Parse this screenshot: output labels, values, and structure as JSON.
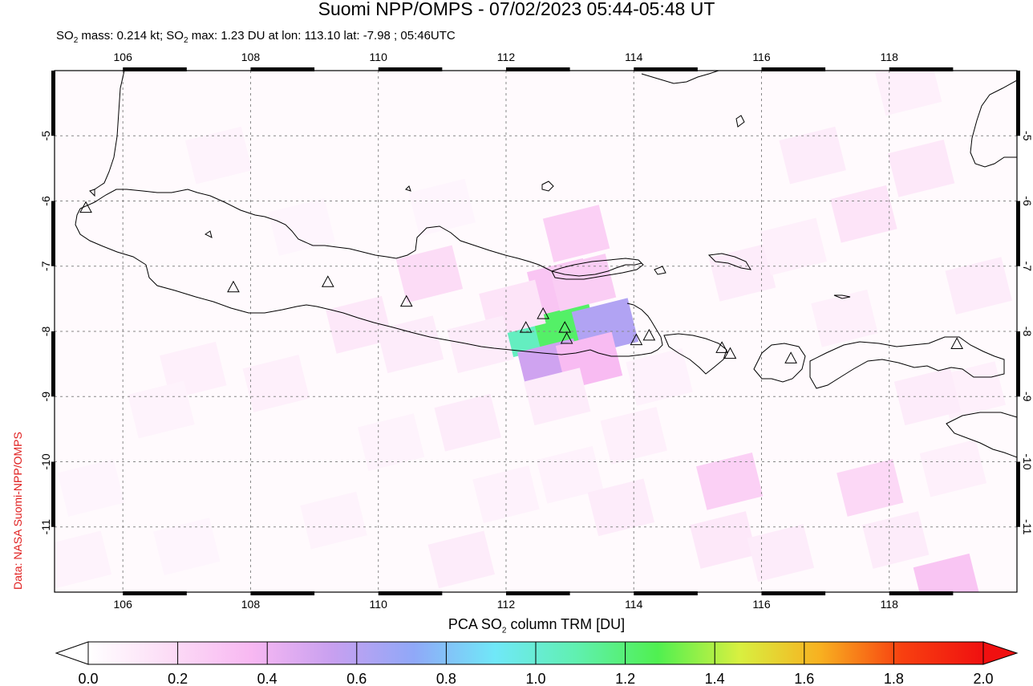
{
  "title": "Suomi NPP/OMPS - 07/02/2023 05:44-05:48 UT",
  "subtitle": {
    "part1": "SO",
    "sub1": "2",
    "part2": " mass: 0.214 kt; SO",
    "sub2": "2",
    "part3": " max: 1.23 DU at lon: 113.10 lat: -7.98 ; 05:46UTC"
  },
  "credit": "Data: NASA Suomi-NPP/OMPS",
  "colorbar": {
    "title_pre": "PCA SO",
    "title_sub": "2",
    "title_post": " column TRM [DU]",
    "ticks": [
      "0.0",
      "0.2",
      "0.4",
      "0.6",
      "0.8",
      "1.0",
      "1.2",
      "1.4",
      "1.6",
      "1.8",
      "2.0"
    ],
    "range": [
      0.0,
      2.0
    ],
    "colors": [
      "#ffffff",
      "#fcdcf6",
      "#f8b8f2",
      "#c8a0f0",
      "#90a8f8",
      "#70e8f8",
      "#60f0b0",
      "#50f050",
      "#d8f040",
      "#f8b020",
      "#f84010",
      "#f01010"
    ]
  },
  "map": {
    "lon_range": [
      104.93,
      120.0
    ],
    "lat_range": [
      -12.0,
      -4.0
    ],
    "lon_ticks": [
      "106",
      "108",
      "110",
      "112",
      "114",
      "116",
      "118"
    ],
    "lat_ticks": [
      "-5",
      "-6",
      "-7",
      "-8",
      "-9",
      "-10",
      "-11"
    ],
    "grid": true,
    "so2_max": {
      "value": 1.23,
      "lon": 113.1,
      "lat": -7.98
    },
    "volcano_icon": "triangle-outline-icon",
    "volcanoes": [
      {
        "lon": 105.42,
        "lat": -6.1
      },
      {
        "lon": 107.73,
        "lat": -7.32
      },
      {
        "lon": 109.21,
        "lat": -7.24
      },
      {
        "lon": 110.44,
        "lat": -7.54
      },
      {
        "lon": 112.31,
        "lat": -7.94
      },
      {
        "lon": 112.58,
        "lat": -7.73
      },
      {
        "lon": 112.92,
        "lat": -7.94
      },
      {
        "lon": 112.95,
        "lat": -8.11
      },
      {
        "lon": 114.04,
        "lat": -8.13
      },
      {
        "lon": 114.24,
        "lat": -8.06
      },
      {
        "lon": 115.38,
        "lat": -8.25
      },
      {
        "lon": 115.51,
        "lat": -8.34
      },
      {
        "lon": 116.46,
        "lat": -8.41
      },
      {
        "lon": 119.06,
        "lat": -8.19
      }
    ],
    "pixels": [
      {
        "lon": 112.36,
        "lat": -7.98,
        "value": 1.05
      },
      {
        "lon": 112.92,
        "lat": -7.93,
        "value": 1.23
      },
      {
        "lon": 113.55,
        "lat": -7.93,
        "value": 0.62
      },
      {
        "lon": 112.7,
        "lat": -8.55,
        "value": 0.52
      },
      {
        "lon": 113.3,
        "lat": -8.45,
        "value": 0.35
      },
      {
        "lon": 112.85,
        "lat": -7.32,
        "value": 0.3
      },
      {
        "lon": 113.2,
        "lat": -7.25,
        "value": 0.26
      },
      {
        "lon": 113.1,
        "lat": -6.5,
        "value": 0.24
      },
      {
        "lon": 110.8,
        "lat": -7.12,
        "value": 0.18
      },
      {
        "lon": 112.1,
        "lat": -7.65,
        "value": 0.14
      },
      {
        "lon": 109.7,
        "lat": -7.9,
        "value": 0.12
      },
      {
        "lon": 110.5,
        "lat": -8.2,
        "value": 0.1
      },
      {
        "lon": 107.1,
        "lat": -8.6,
        "value": 0.08
      },
      {
        "lon": 108.4,
        "lat": -8.8,
        "value": 0.08
      },
      {
        "lon": 111.6,
        "lat": -8.2,
        "value": 0.1
      },
      {
        "lon": 111.4,
        "lat": -9.4,
        "value": 0.1
      },
      {
        "lon": 112.8,
        "lat": -9.0,
        "value": 0.1
      },
      {
        "lon": 114.4,
        "lat": -8.7,
        "value": 0.07
      },
      {
        "lon": 114.0,
        "lat": -9.6,
        "value": 0.08
      },
      {
        "lon": 113.0,
        "lat": -10.2,
        "value": 0.07
      },
      {
        "lon": 115.5,
        "lat": -10.3,
        "value": 0.24
      },
      {
        "lon": 117.7,
        "lat": -10.4,
        "value": 0.2
      },
      {
        "lon": 115.4,
        "lat": -11.2,
        "value": 0.12
      },
      {
        "lon": 116.3,
        "lat": -11.4,
        "value": 0.1
      },
      {
        "lon": 113.8,
        "lat": -10.7,
        "value": 0.1
      },
      {
        "lon": 112.0,
        "lat": -10.5,
        "value": 0.07
      },
      {
        "lon": 111.3,
        "lat": -11.5,
        "value": 0.1
      },
      {
        "lon": 118.9,
        "lat": -11.85,
        "value": 0.3
      },
      {
        "lon": 118.1,
        "lat": -11.2,
        "value": 0.1
      },
      {
        "lon": 119.0,
        "lat": -10.1,
        "value": 0.08
      },
      {
        "lon": 119.3,
        "lat": -8.9,
        "value": 0.08
      },
      {
        "lon": 118.6,
        "lat": -9.0,
        "value": 0.1
      },
      {
        "lon": 115.7,
        "lat": -7.1,
        "value": 0.1
      },
      {
        "lon": 116.5,
        "lat": -6.7,
        "value": 0.08
      },
      {
        "lon": 117.6,
        "lat": -6.2,
        "value": 0.14
      },
      {
        "lon": 118.5,
        "lat": -5.5,
        "value": 0.12
      },
      {
        "lon": 116.8,
        "lat": -5.3,
        "value": 0.1
      },
      {
        "lon": 117.3,
        "lat": -7.8,
        "value": 0.08
      },
      {
        "lon": 119.4,
        "lat": -7.3,
        "value": 0.1
      },
      {
        "lon": 118.3,
        "lat": -4.25,
        "value": 0.08
      },
      {
        "lon": 107.5,
        "lat": -5.3,
        "value": 0.06
      },
      {
        "lon": 106.6,
        "lat": -9.2,
        "value": 0.06
      },
      {
        "lon": 105.5,
        "lat": -10.4,
        "value": 0.05
      },
      {
        "lon": 105.3,
        "lat": -11.5,
        "value": 0.06
      },
      {
        "lon": 107.0,
        "lat": -11.3,
        "value": 0.05
      },
      {
        "lon": 109.3,
        "lat": -10.9,
        "value": 0.06
      },
      {
        "lon": 110.2,
        "lat": -9.7,
        "value": 0.06
      },
      {
        "lon": 111.0,
        "lat": -6.1,
        "value": 0.05
      },
      {
        "lon": 108.8,
        "lat": -6.4,
        "value": 0.05
      }
    ]
  }
}
